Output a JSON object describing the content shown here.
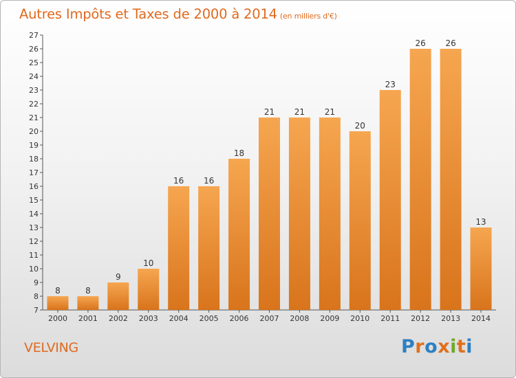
{
  "title": "Autres Impôts et Taxes de 2000 à 2014",
  "unit": "(en milliers d'€)",
  "place": "VELVING",
  "logo": {
    "letters": [
      "P",
      "r",
      "o",
      "x",
      "i",
      "t",
      "i"
    ],
    "colors": [
      "#2e7fc2",
      "#e0701f",
      "#2e7fc2",
      "#e0701f",
      "#6cab2b",
      "#e0701f",
      "#2e7fc2"
    ]
  },
  "chart_data": {
    "type": "bar",
    "title": "Autres Impôts et Taxes de 2000 à 2014",
    "subtitle": "(en milliers d'€)",
    "categories": [
      "2000",
      "2001",
      "2002",
      "2003",
      "2004",
      "2005",
      "2006",
      "2007",
      "2008",
      "2009",
      "2010",
      "2011",
      "2012",
      "2013",
      "2014"
    ],
    "values": [
      8,
      8,
      9,
      10,
      16,
      16,
      18,
      21,
      21,
      21,
      20,
      23,
      26,
      26,
      13
    ],
    "ylim": [
      7,
      27
    ],
    "yticks": [
      7,
      8,
      9,
      10,
      11,
      12,
      13,
      14,
      15,
      16,
      17,
      18,
      19,
      20,
      21,
      22,
      23,
      24,
      25,
      26,
      27
    ],
    "grid": false,
    "bar_color": "#f08a2a",
    "legend": "none"
  }
}
